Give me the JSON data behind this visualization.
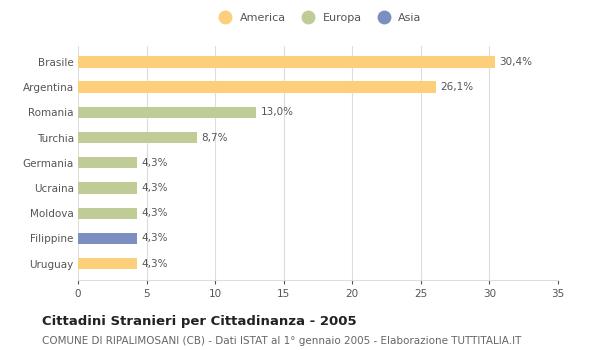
{
  "categories": [
    "Brasile",
    "Argentina",
    "Romania",
    "Turchia",
    "Germania",
    "Ucraina",
    "Moldova",
    "Filippine",
    "Uruguay"
  ],
  "values": [
    30.4,
    26.1,
    13.0,
    8.7,
    4.3,
    4.3,
    4.3,
    4.3,
    4.3
  ],
  "labels": [
    "30,4%",
    "26,1%",
    "13,0%",
    "8,7%",
    "4,3%",
    "4,3%",
    "4,3%",
    "4,3%",
    "4,3%"
  ],
  "colors": [
    "#FDCF7A",
    "#FDCF7A",
    "#BFCC96",
    "#BFCC96",
    "#BFCC96",
    "#BFCC96",
    "#BFCC96",
    "#7B8FC0",
    "#FDCF7A"
  ],
  "legend_labels": [
    "America",
    "Europa",
    "Asia"
  ],
  "legend_colors": [
    "#FDCF7A",
    "#BFCC96",
    "#7B8FC0"
  ],
  "xlim": [
    0,
    35
  ],
  "xticks": [
    0,
    5,
    10,
    15,
    20,
    25,
    30,
    35
  ],
  "title": "Cittadini Stranieri per Cittadinanza - 2005",
  "subtitle": "COMUNE DI RIPALIMOSANI (CB) - Dati ISTAT al 1° gennaio 2005 - Elaborazione TUTTITALIA.IT",
  "background_color": "#FFFFFF",
  "grid_color": "#DDDDDD",
  "bar_height": 0.45,
  "label_fontsize": 7.5,
  "title_fontsize": 9.5,
  "subtitle_fontsize": 7.5,
  "tick_fontsize": 7.5
}
